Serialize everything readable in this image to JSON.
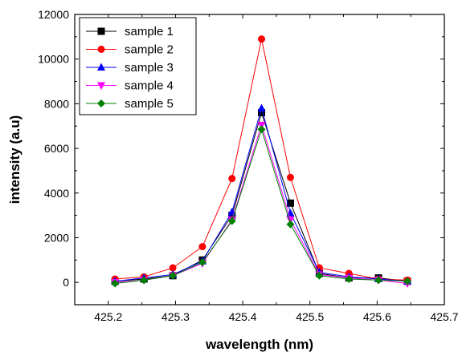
{
  "chart_data": {
    "type": "line",
    "title": "",
    "xlabel": "wavelength (nm)",
    "ylabel": "intensity (a.u)",
    "xlim": [
      425.15,
      425.7
    ],
    "ylim": [
      -1000,
      12000
    ],
    "x_ticks": [
      425.2,
      425.3,
      425.4,
      425.5,
      425.6,
      425.7
    ],
    "x_tick_labels": [
      "425.2",
      "425.3",
      "425.4",
      "425.5",
      "425.6",
      "425.7"
    ],
    "y_ticks": [
      0,
      2000,
      4000,
      6000,
      8000,
      10000,
      12000
    ],
    "y_tick_labels": [
      "0",
      "2000",
      "4000",
      "6000",
      "8000",
      "10000",
      "12000"
    ],
    "legend_position": "top-left",
    "grid": false,
    "x": [
      425.21,
      425.253,
      425.296,
      425.34,
      425.384,
      425.428,
      425.471,
      425.514,
      425.558,
      425.602,
      425.645
    ],
    "series": [
      {
        "name": "sample 1",
        "color": "#000000",
        "marker": "square",
        "values": [
          50,
          150,
          300,
          1000,
          3000,
          7600,
          3550,
          400,
          200,
          200,
          50
        ]
      },
      {
        "name": "sample 2",
        "color": "#ff0000",
        "marker": "circle",
        "values": [
          150,
          250,
          650,
          1600,
          4650,
          10900,
          4700,
          650,
          400,
          150,
          100
        ]
      },
      {
        "name": "sample 3",
        "color": "#0000ff",
        "marker": "triangle-up",
        "values": [
          50,
          200,
          350,
          950,
          3150,
          7800,
          3100,
          450,
          250,
          150,
          50
        ]
      },
      {
        "name": "sample 4",
        "color": "#ff00ff",
        "marker": "triangle-down",
        "values": [
          0,
          100,
          300,
          850,
          2800,
          7050,
          2800,
          350,
          200,
          100,
          -50
        ]
      },
      {
        "name": "sample 5",
        "color": "#008000",
        "marker": "diamond",
        "values": [
          -50,
          100,
          300,
          900,
          2750,
          6850,
          2600,
          300,
          150,
          100,
          50
        ]
      }
    ]
  }
}
